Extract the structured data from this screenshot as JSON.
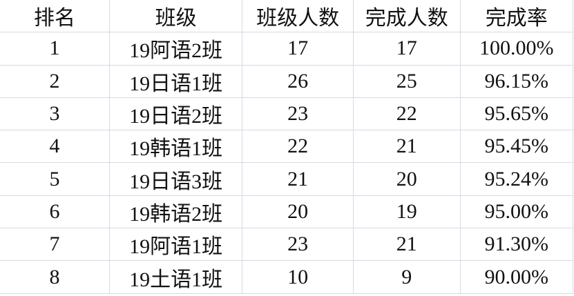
{
  "table": {
    "headers": [
      "排名",
      "班级",
      "班级人数",
      "完成人数",
      "完成率"
    ],
    "rows": [
      [
        "1",
        "19阿语2班",
        "17",
        "17",
        "100.00%"
      ],
      [
        "2",
        "19日语1班",
        "26",
        "25",
        "96.15%"
      ],
      [
        "3",
        "19日语2班",
        "23",
        "22",
        "95.65%"
      ],
      [
        "4",
        "19韩语1班",
        "22",
        "21",
        "95.45%"
      ],
      [
        "5",
        "19日语3班",
        "21",
        "20",
        "95.24%"
      ],
      [
        "6",
        "19韩语2班",
        "20",
        "19",
        "95.00%"
      ],
      [
        "7",
        "19阿语1班",
        "23",
        "21",
        "91.30%"
      ],
      [
        "8",
        "19土语1班",
        "10",
        "9",
        "90.00%"
      ]
    ]
  },
  "colors": {
    "gridline": "#d5d9e5",
    "text": "#111111"
  }
}
